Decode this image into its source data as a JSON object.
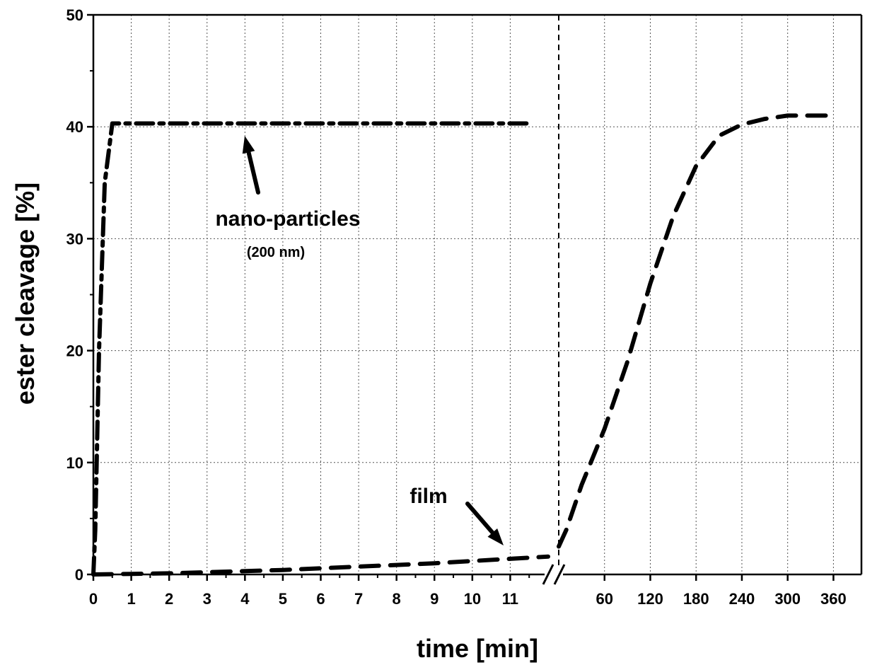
{
  "chart_data": {
    "type": "line",
    "xlabel": "time [min]",
    "ylabel": "ester cleavage [%]",
    "ylim": [
      0,
      50
    ],
    "y_ticks": [
      0,
      10,
      20,
      30,
      40,
      50
    ],
    "x_axis": {
      "broken": true,
      "segment1": {
        "range": [
          0,
          12
        ],
        "ticks": [
          0,
          1,
          2,
          3,
          4,
          5,
          6,
          7,
          8,
          9,
          10,
          11
        ]
      },
      "segment2": {
        "range": [
          0,
          380
        ],
        "ticks": [
          60,
          120,
          180,
          240,
          300,
          360
        ]
      }
    },
    "grid": true,
    "series": [
      {
        "name": "nano-particles",
        "line_style": "dash-dot",
        "segment1": [
          [
            0,
            0
          ],
          [
            0.05,
            4
          ],
          [
            0.15,
            20
          ],
          [
            0.3,
            35
          ],
          [
            0.5,
            40.3
          ],
          [
            11.5,
            40.3
          ]
        ]
      },
      {
        "name": "film",
        "line_style": "dashed",
        "segment1": [
          [
            0,
            0
          ],
          [
            1,
            0.05
          ],
          [
            2,
            0.1
          ],
          [
            3,
            0.2
          ],
          [
            4,
            0.3
          ],
          [
            5,
            0.4
          ],
          [
            6,
            0.55
          ],
          [
            7,
            0.7
          ],
          [
            8,
            0.85
          ],
          [
            9,
            1.0
          ],
          [
            10,
            1.2
          ],
          [
            11,
            1.4
          ],
          [
            12,
            1.6
          ]
        ],
        "segment2": [
          [
            0,
            2.5
          ],
          [
            10,
            4
          ],
          [
            30,
            8
          ],
          [
            60,
            13
          ],
          [
            90,
            19
          ],
          [
            120,
            26
          ],
          [
            150,
            32
          ],
          [
            180,
            36.5
          ],
          [
            210,
            39.2
          ],
          [
            240,
            40.2
          ],
          [
            270,
            40.7
          ],
          [
            300,
            41
          ],
          [
            360,
            41
          ]
        ]
      }
    ],
    "annotations": [
      {
        "text": "nano-particles",
        "sub": "(200 nm)",
        "target": "nano-particles"
      },
      {
        "text": "film",
        "target": "film"
      }
    ]
  }
}
